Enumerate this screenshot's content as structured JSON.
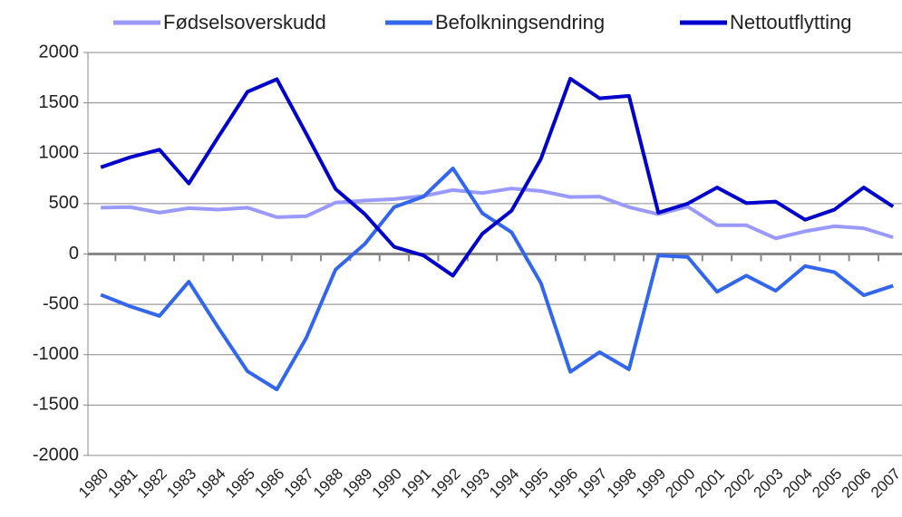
{
  "chart_data": {
    "type": "line",
    "categories": [
      "1980",
      "1981",
      "1982",
      "1983",
      "1984",
      "1985",
      "1986",
      "1987",
      "1988",
      "1989",
      "1990",
      "1991",
      "1992",
      "1993",
      "1994",
      "1995",
      "1996",
      "1997",
      "1998",
      "1999",
      "2000",
      "2001",
      "2002",
      "2003",
      "2004",
      "2005",
      "2006",
      "2007"
    ],
    "series": [
      {
        "name": "Fødselsoverskudd",
        "color": "#9999ff",
        "values": [
          460,
          465,
          410,
          455,
          440,
          460,
          365,
          375,
          510,
          530,
          545,
          575,
          635,
          605,
          650,
          625,
          565,
          570,
          465,
          395,
          470,
          285,
          285,
          155,
          225,
          275,
          255,
          165
        ]
      },
      {
        "name": "Befolkningsendring",
        "color": "#3366ee",
        "values": [
          -405,
          -520,
          -615,
          -275,
          -730,
          -1165,
          -1345,
          -835,
          -155,
          100,
          465,
          570,
          850,
          405,
          215,
          -290,
          -1170,
          -975,
          -1145,
          -15,
          -30,
          -375,
          -215,
          -365,
          -120,
          -180,
          -410,
          -315
        ]
      },
      {
        "name": "Nettoutflytting",
        "color": "#0000cc",
        "values": [
          860,
          960,
          1035,
          700,
          1160,
          1610,
          1735,
          1195,
          645,
          395,
          70,
          -15,
          -215,
          200,
          430,
          945,
          1740,
          1545,
          1570,
          410,
          500,
          660,
          505,
          520,
          340,
          440,
          660,
          470
        ]
      }
    ],
    "ylim": [
      -2000,
      2000
    ],
    "yticks": [
      -2000,
      -1500,
      -1000,
      -500,
      0,
      500,
      1000,
      1500,
      2000
    ],
    "grid": true,
    "legend": "top"
  }
}
